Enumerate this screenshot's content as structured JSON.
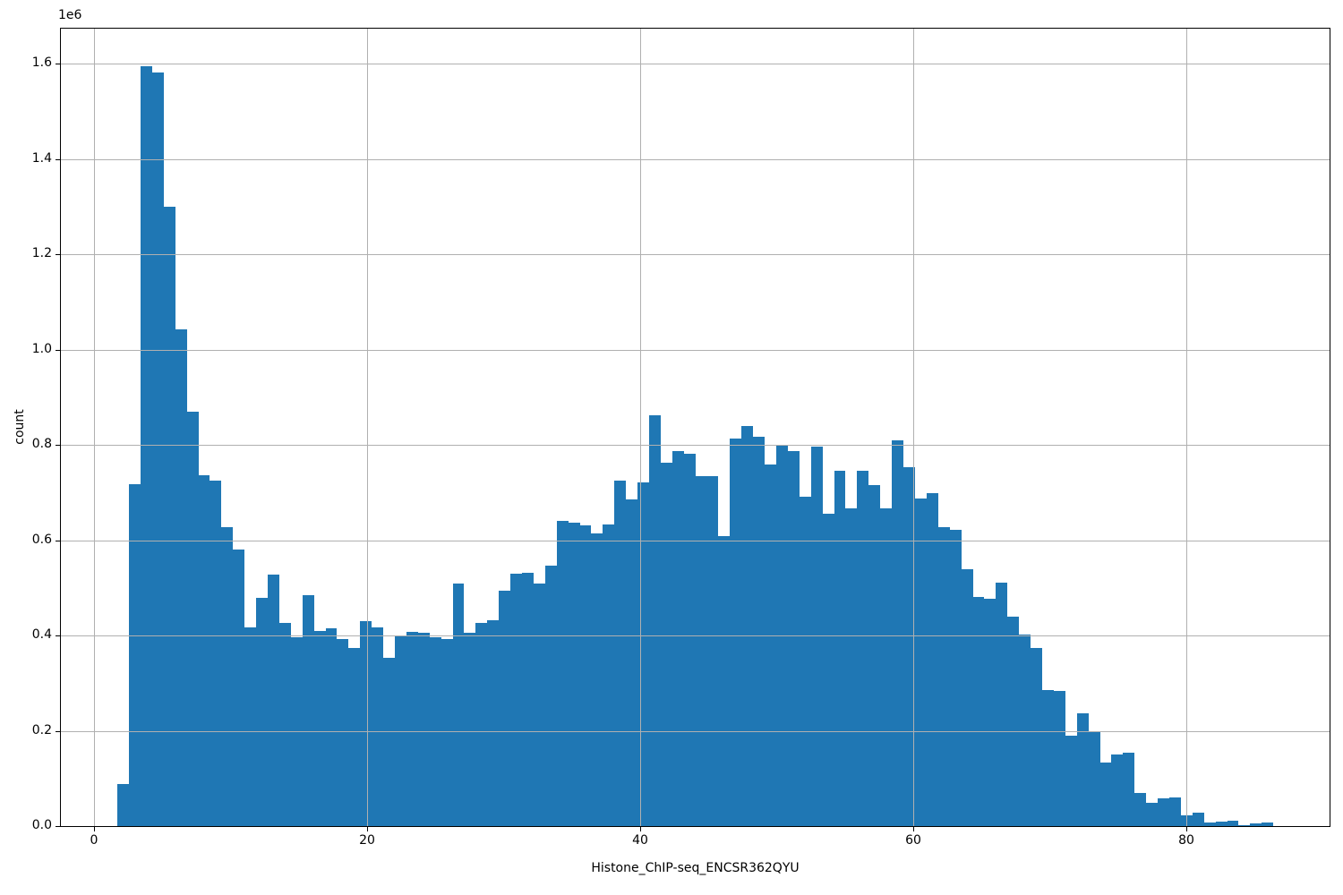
{
  "figure": {
    "background": "#ffffff",
    "bar_color": "#1f77b4",
    "grid_color": "#b0b0b0",
    "spine_color": "#000000"
  },
  "chart_data": {
    "type": "bar",
    "subtype": "histogram",
    "title": "",
    "xlabel": "Histone_ChIP-seq_ENCSR362QYU",
    "ylabel": "count",
    "y_offset_label": "1e6",
    "grid": true,
    "legend": false,
    "xlim": [
      -2.44,
      90.48
    ],
    "ylim": [
      0,
      1674000
    ],
    "x_ticks": [
      0,
      20,
      40,
      60,
      80
    ],
    "x_tick_labels": [
      "0",
      "20",
      "40",
      "60",
      "80"
    ],
    "y_ticks": [
      0,
      200000,
      400000,
      600000,
      800000,
      1000000,
      1200000,
      1400000,
      1600000
    ],
    "y_tick_labels": [
      "0.0",
      "0.2",
      "0.4",
      "0.6",
      "0.8",
      "1.0",
      "1.2",
      "1.4",
      "1.6"
    ],
    "bins": {
      "start": 1.7,
      "width": 0.8466,
      "count": 100
    },
    "counts": [
      88000,
      717000,
      1596000,
      1582000,
      1300000,
      1043000,
      870000,
      736000,
      725000,
      627000,
      581000,
      417000,
      480000,
      528000,
      427000,
      397000,
      485000,
      409000,
      415000,
      393000,
      373000,
      430000,
      418000,
      353000,
      400000,
      407000,
      405000,
      396000,
      393000,
      509000,
      405000,
      426000,
      432000,
      495000,
      529000,
      532000,
      510000,
      547000,
      640000,
      636000,
      631000,
      615000,
      634000,
      726000,
      685000,
      722000,
      863000,
      763000,
      788000,
      781000,
      735000,
      735000,
      608000,
      813000,
      840000,
      817000,
      759000,
      798000,
      787000,
      692000,
      797000,
      655000,
      745000,
      667000,
      745000,
      715000,
      667000,
      810000,
      754000,
      688000,
      698000,
      627000,
      621000,
      539000,
      481000,
      478000,
      511000,
      440000,
      403000,
      373000,
      286000,
      284000,
      190000,
      236000,
      198000,
      134000,
      151000,
      154000,
      69000,
      48000,
      59000,
      60000,
      23000,
      29000,
      8000,
      9000,
      12000,
      1000,
      5000,
      7000
    ]
  }
}
